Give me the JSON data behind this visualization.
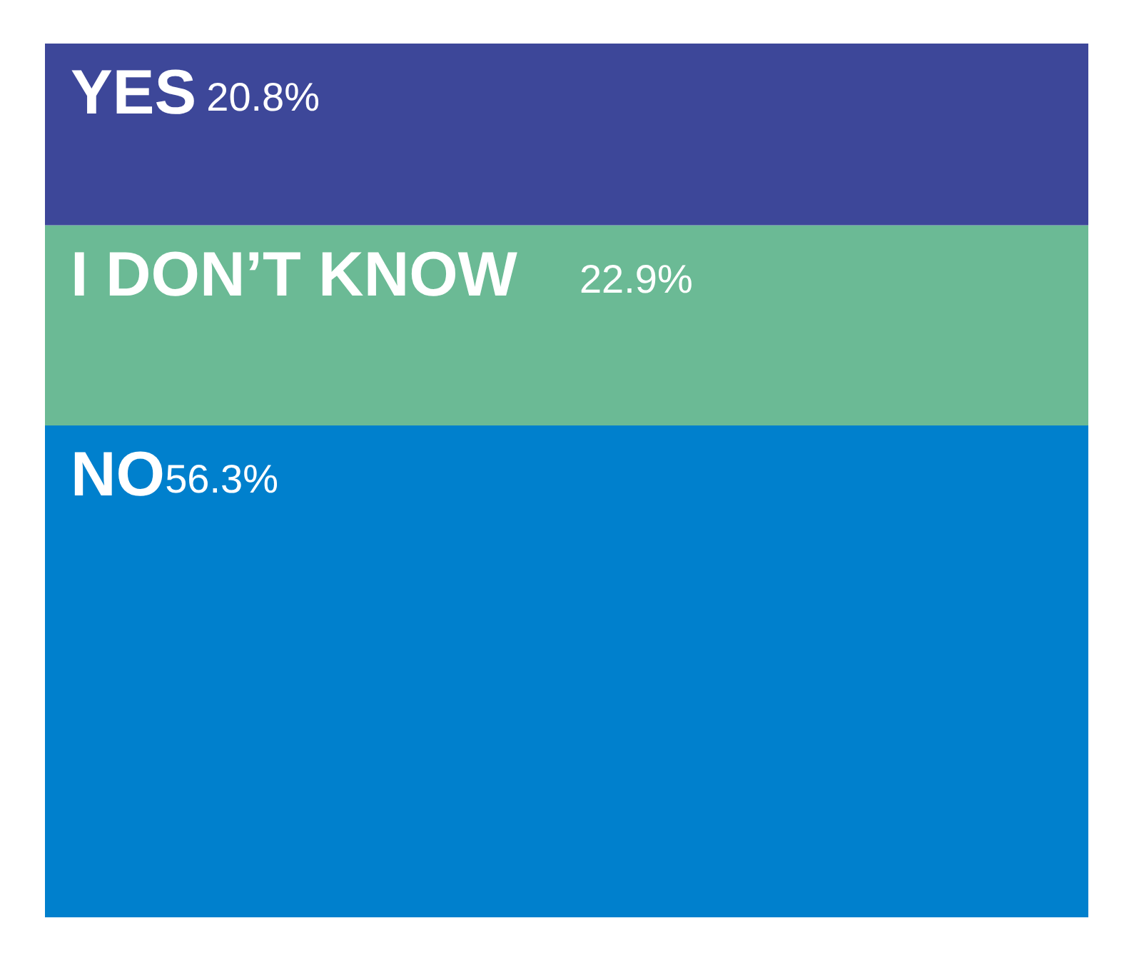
{
  "chart_data": {
    "type": "bar",
    "stacked": true,
    "categories": [
      null
    ],
    "series": [
      {
        "name": "NO",
        "color": "#0080cd",
        "values": [
          56.3
        ],
        "value_labels": [
          "56.3%"
        ]
      },
      {
        "name": "I DON’T KNOW",
        "color": "#6bba95",
        "values": [
          22.9
        ],
        "value_labels": [
          "22.9%"
        ]
      },
      {
        "name": "YES",
        "color": "#3d4799",
        "values": [
          20.8
        ],
        "value_labels": [
          "20.8%"
        ]
      }
    ]
  }
}
